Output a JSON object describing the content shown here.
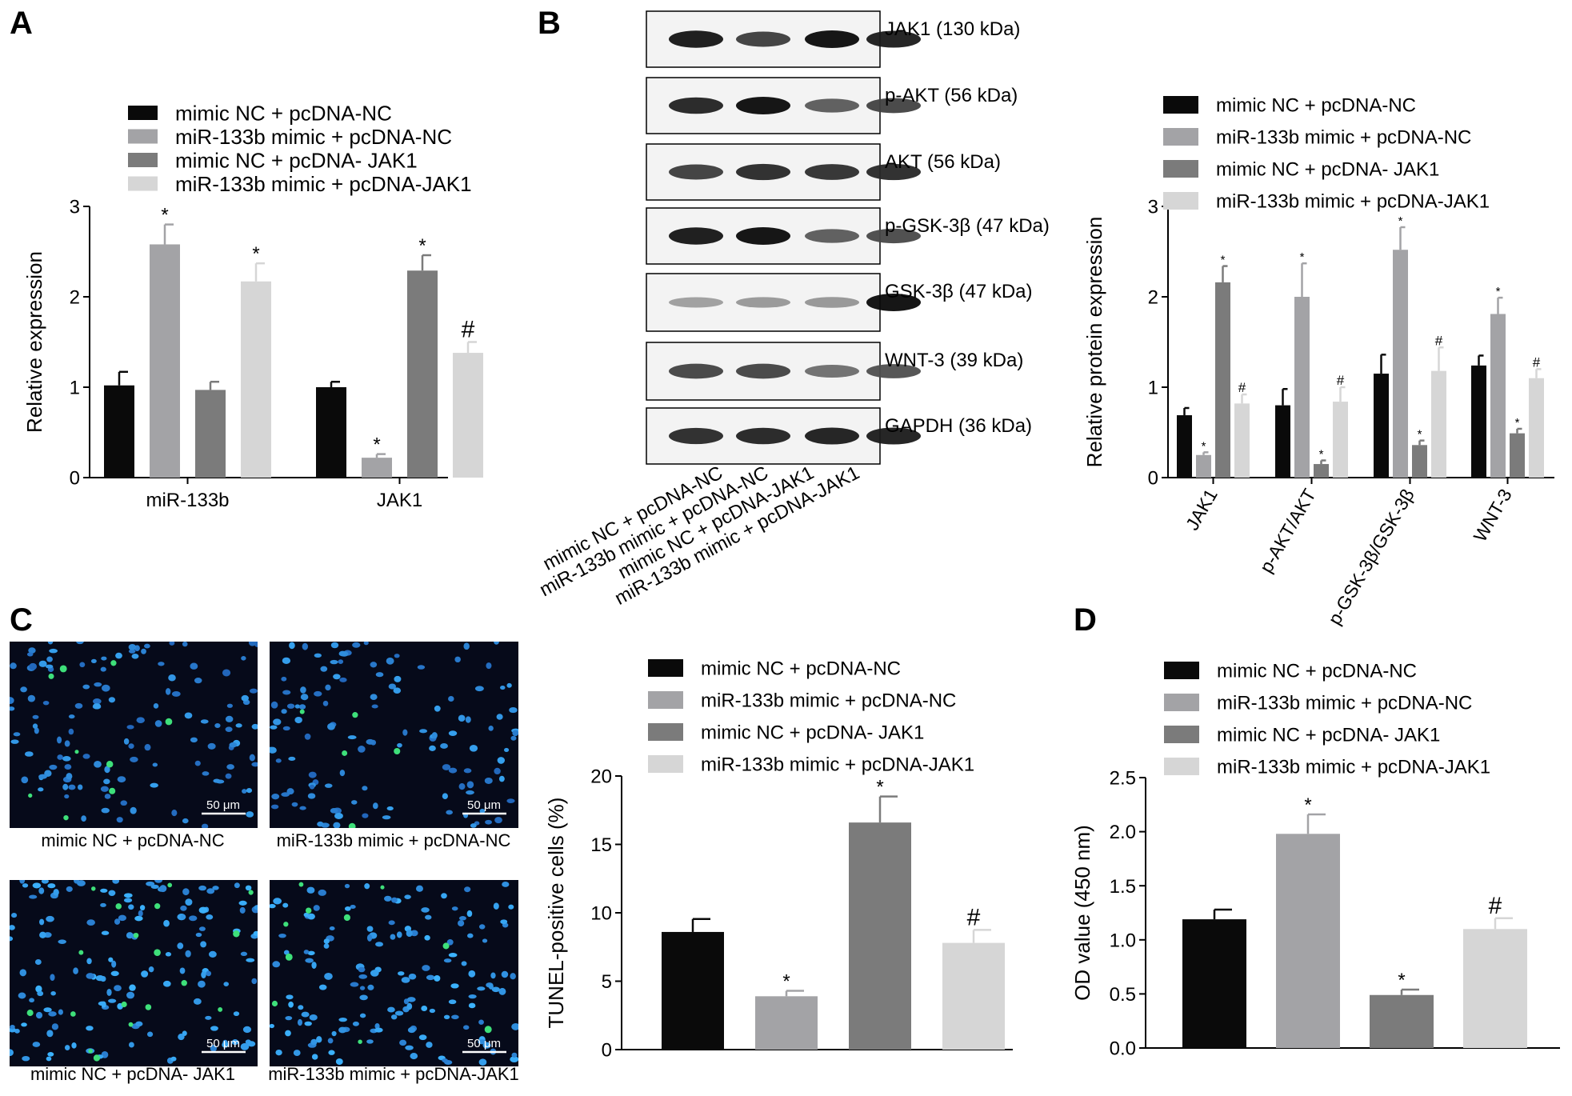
{
  "panel_letters": {
    "a": "A",
    "b": "B",
    "c": "C",
    "d": "D"
  },
  "group_legend": [
    {
      "label": "mimic NC + pcDNA-NC",
      "color": "#0a0a0a"
    },
    {
      "label": "miR-133b mimic + pcDNA-NC",
      "color": "#a3a3a6"
    },
    {
      "label": "mimic NC + pcDNA- JAK1",
      "color": "#7b7b7b"
    },
    {
      "label": "miR-133b mimic + pcDNA-JAK1",
      "color": "#d6d6d6"
    }
  ],
  "blot": {
    "bands": [
      {
        "label": "JAK1 (130 kDa)"
      },
      {
        "label": "p-AKT (56 kDa)"
      },
      {
        "label": "AKT (56 kDa)"
      },
      {
        "label": "p-GSK-3β (47 kDa)"
      },
      {
        "label": "GSK-3β (47 kDa)"
      },
      {
        "label": "WNT-3 (39 kDa)"
      },
      {
        "label": "GAPDH (36 kDa)"
      }
    ],
    "lane_labels": [
      "mimic NC + pcDNA-NC",
      "miR-133b mimic + pcDNA-NC",
      "mimic NC + pcDNA-JAK1",
      "miR-133b mimic + pcDNA-JAK1"
    ]
  },
  "micrographs": {
    "scale_bar": "50 μm",
    "captions": [
      "mimic NC + pcDNA-NC",
      "miR-133b mimic + pcDNA-NC",
      "mimic NC + pcDNA- JAK1",
      "miR-133b mimic + pcDNA-JAK1"
    ]
  },
  "chart_data": [
    {
      "id": "A",
      "type": "bar",
      "categories": [
        "miR-133b",
        "JAK1"
      ],
      "ylabel": "Relative expression",
      "ylim": [
        0,
        3
      ],
      "yticks": [
        "0",
        "1",
        "2",
        "3"
      ],
      "series": [
        {
          "name": "mimic NC + pcDNA-NC",
          "values": [
            1.02,
            1.0
          ],
          "errors": [
            0.15,
            0.06
          ],
          "marks": [
            "",
            ""
          ]
        },
        {
          "name": "miR-133b mimic + pcDNA-NC",
          "values": [
            2.58,
            0.22
          ],
          "errors": [
            0.22,
            0.04
          ],
          "marks": [
            "*",
            "*"
          ]
        },
        {
          "name": "mimic NC + pcDNA- JAK1",
          "values": [
            0.97,
            2.29
          ],
          "errors": [
            0.09,
            0.17
          ],
          "marks": [
            "",
            "*"
          ]
        },
        {
          "name": "miR-133b mimic + pcDNA-JAK1",
          "values": [
            2.17,
            1.38
          ],
          "errors": [
            0.2,
            0.12
          ],
          "marks": [
            "*",
            "#"
          ]
        }
      ]
    },
    {
      "id": "B",
      "type": "bar",
      "categories": [
        "JAK1",
        "p-AKT/AKT",
        "p-GSK-3β/GSK-3β",
        "WNT-3"
      ],
      "ylabel": "Relative protein expression",
      "ylim": [
        0,
        3
      ],
      "yticks": [
        "0",
        "1",
        "2",
        "3"
      ],
      "series": [
        {
          "name": "mimic NC + pcDNA-NC",
          "values": [
            0.69,
            0.8,
            1.15,
            1.24
          ],
          "errors": [
            0.08,
            0.18,
            0.21,
            0.11
          ],
          "marks": [
            "",
            "",
            "",
            ""
          ]
        },
        {
          "name": "miR-133b mimic + pcDNA-NC",
          "values": [
            0.25,
            2.0,
            2.52,
            1.81
          ],
          "errors": [
            0.03,
            0.37,
            0.25,
            0.18
          ],
          "marks": [
            "*",
            "*",
            "*",
            "*"
          ]
        },
        {
          "name": "mimic NC + pcDNA- JAK1",
          "values": [
            2.16,
            0.15,
            0.36,
            0.49
          ],
          "errors": [
            0.18,
            0.04,
            0.05,
            0.05
          ],
          "marks": [
            "*",
            "*",
            "*",
            "*"
          ]
        },
        {
          "name": "miR-133b mimic + pcDNA-JAK1",
          "values": [
            0.82,
            0.84,
            1.18,
            1.1
          ],
          "errors": [
            0.1,
            0.16,
            0.26,
            0.1
          ],
          "marks": [
            "#",
            "#",
            "#",
            "#"
          ]
        }
      ]
    },
    {
      "id": "C",
      "type": "bar",
      "categories": [
        ""
      ],
      "ylabel": "TUNEL-positive cells (%)",
      "ylim": [
        0,
        20
      ],
      "yticks": [
        "0",
        "5",
        "10",
        "15",
        "20"
      ],
      "series": [
        {
          "name": "mimic NC + pcDNA-NC",
          "values": [
            8.6
          ],
          "errors": [
            0.95
          ],
          "marks": [
            ""
          ]
        },
        {
          "name": "miR-133b mimic + pcDNA-NC",
          "values": [
            3.9
          ],
          "errors": [
            0.4
          ],
          "marks": [
            "*"
          ]
        },
        {
          "name": "mimic NC + pcDNA- JAK1",
          "values": [
            16.6
          ],
          "errors": [
            1.9
          ],
          "marks": [
            "*"
          ]
        },
        {
          "name": "miR-133b mimic + pcDNA-JAK1",
          "values": [
            7.8
          ],
          "errors": [
            0.95
          ],
          "marks": [
            "#"
          ]
        }
      ]
    },
    {
      "id": "D",
      "type": "bar",
      "categories": [
        ""
      ],
      "ylabel": "OD value (450 nm)",
      "ylim": [
        0,
        2.5
      ],
      "yticks": [
        "0.0",
        "0.5",
        "1.0",
        "1.5",
        "2.0",
        "2.5"
      ],
      "series": [
        {
          "name": "mimic NC + pcDNA-NC",
          "values": [
            1.19
          ],
          "errors": [
            0.09
          ],
          "marks": [
            ""
          ]
        },
        {
          "name": "miR-133b mimic + pcDNA-NC",
          "values": [
            1.98
          ],
          "errors": [
            0.18
          ],
          "marks": [
            "*"
          ]
        },
        {
          "name": "mimic NC + pcDNA- JAK1",
          "values": [
            0.49
          ],
          "errors": [
            0.05
          ],
          "marks": [
            "*"
          ]
        },
        {
          "name": "miR-133b mimic + pcDNA-JAK1",
          "values": [
            1.1
          ],
          "errors": [
            0.1
          ],
          "marks": [
            "#"
          ]
        }
      ]
    }
  ]
}
